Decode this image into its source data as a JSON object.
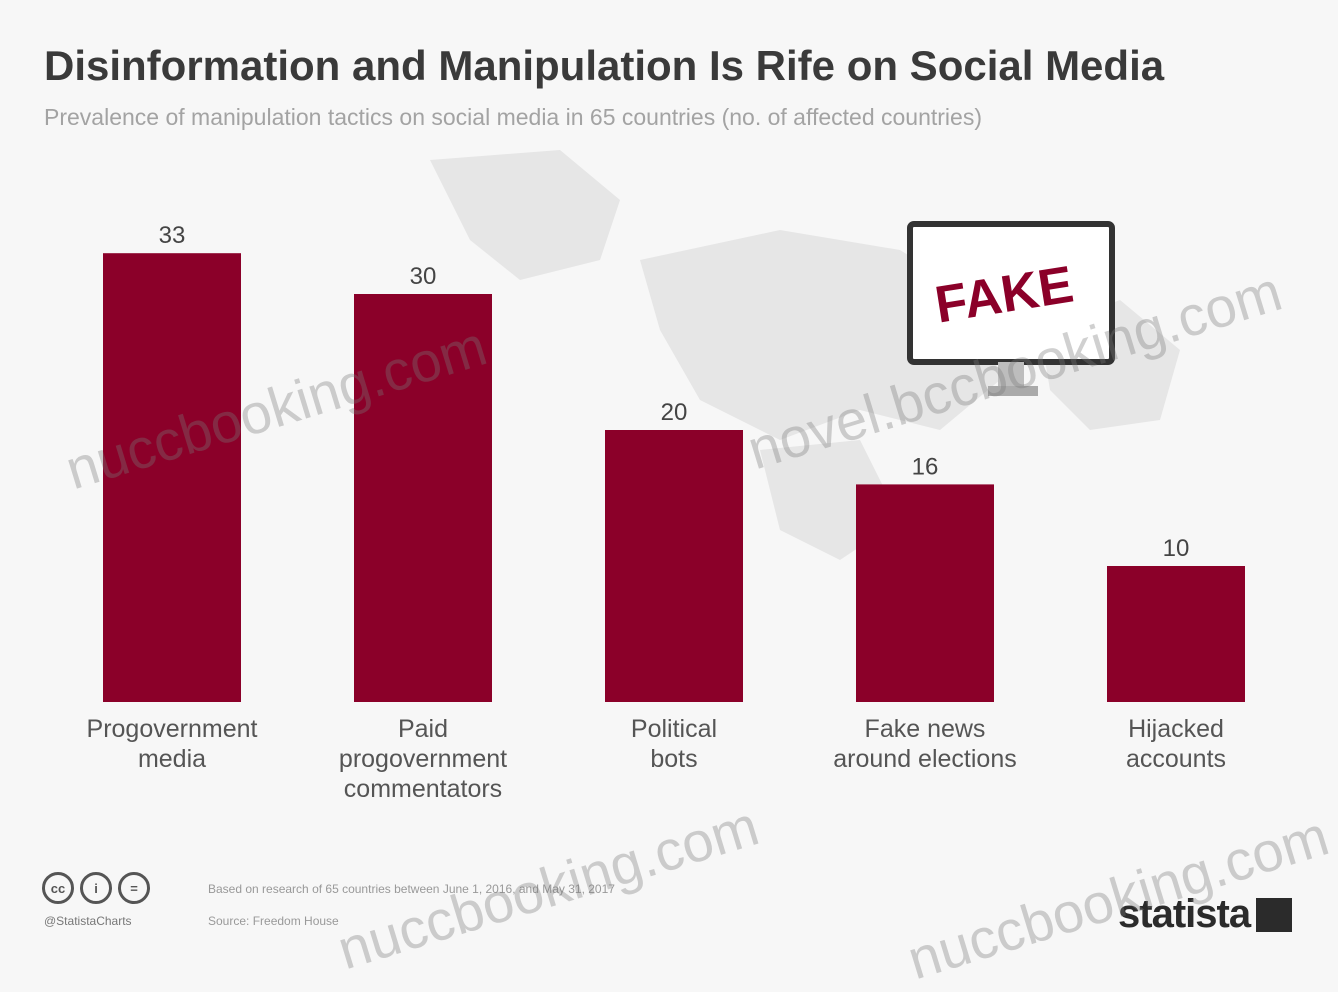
{
  "title": "Disinformation and Manipulation Is Rife on Social Media",
  "subtitle": "Prevalence of manipulation tactics on social media in 65 countries (no. of affected countries)",
  "screen_label": "FAKE",
  "footer": {
    "icons": [
      "cc-icon",
      "by-icon",
      "nd-icon"
    ],
    "handle": "@StatistaCharts",
    "note": "Based on research of 65 countries between June 1, 2016, and May 31, 2017",
    "source": "Source: Freedom House",
    "brand": "statista"
  },
  "watermarks": [
    "nuccbooking.com",
    "novel.bccbooking.com",
    "nuccbooking.com",
    "nuccbooking.com"
  ],
  "colors": {
    "bar": "#8b0029",
    "text": "#3a3a3a",
    "muted": "#a3a3a3",
    "background": "#f7f7f7"
  },
  "chart_data": {
    "type": "bar",
    "categories": [
      "Progovernment media",
      "Paid progovernment commentators",
      "Political bots",
      "Fake news around elections",
      "Hijacked accounts"
    ],
    "category_lines": [
      [
        "Progovernment",
        "media"
      ],
      [
        "Paid",
        "progovernment",
        "commentators"
      ],
      [
        "Political",
        "bots"
      ],
      [
        "Fake news",
        "around elections"
      ],
      [
        "Hijacked",
        "accounts"
      ]
    ],
    "values": [
      33,
      30,
      20,
      16,
      10
    ],
    "data_labels": [
      "33",
      "30",
      "20",
      "16",
      "10"
    ],
    "ylim": [
      0,
      35
    ],
    "grid": false,
    "legend": "none"
  }
}
